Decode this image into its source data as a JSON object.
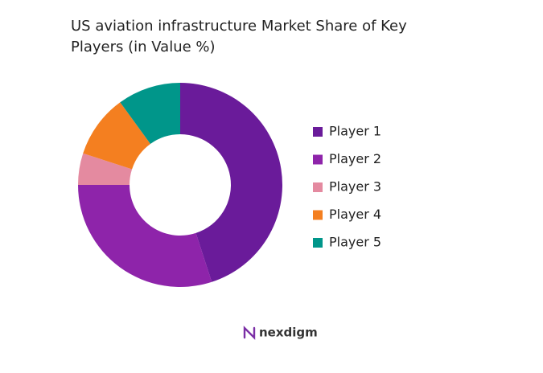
{
  "chart_data": {
    "type": "donut",
    "title": "US aviation infrastructure Market Share of Key Players (in Value %)",
    "categories": [
      "Player 1",
      "Player 2",
      "Player 3",
      "Player 4",
      "Player 5"
    ],
    "values": [
      45,
      30,
      5,
      10,
      10
    ],
    "colors": [
      "#6a1b9a",
      "#8e24aa",
      "#e48aa0",
      "#f47f20",
      "#00968a"
    ],
    "legend": "right"
  },
  "footer": {
    "logo": "nexdigm"
  }
}
